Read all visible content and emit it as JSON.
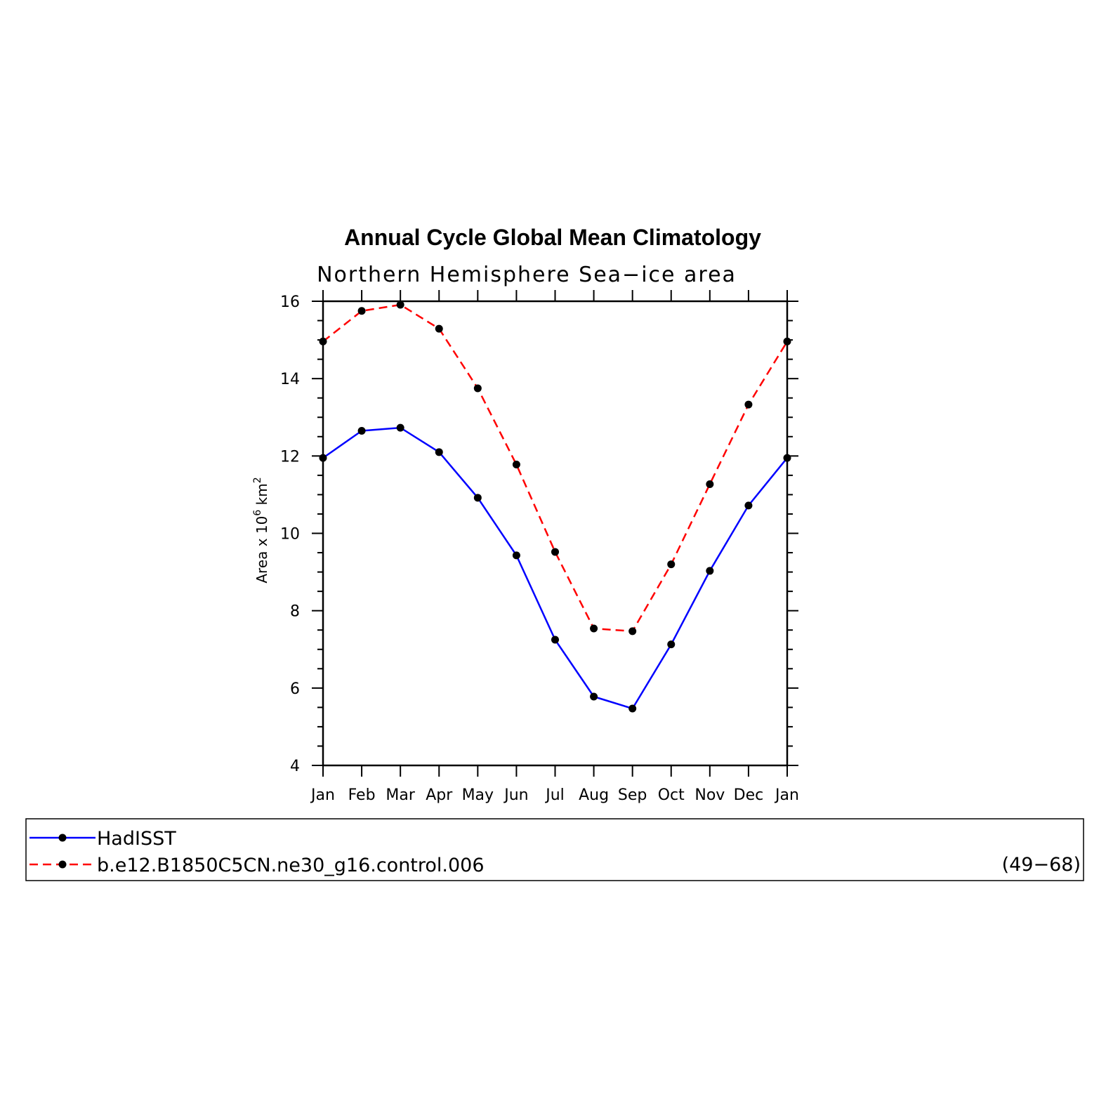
{
  "chart_data": {
    "type": "line",
    "title": "Annual Cycle Global Mean Climatology",
    "subtitle": "Northern Hemisphere Sea−ice area",
    "ylabel": {
      "text": "Area x 10",
      "sup1": "6",
      "unit": " km",
      "sup2": "2"
    },
    "xlabel": "",
    "categories": [
      "Jan",
      "Feb",
      "Mar",
      "Apr",
      "May",
      "Jun",
      "Jul",
      "Aug",
      "Sep",
      "Oct",
      "Nov",
      "Dec",
      "Jan"
    ],
    "ylim": [
      4,
      16
    ],
    "yticks": [
      4,
      6,
      8,
      10,
      12,
      14,
      16
    ],
    "series": [
      {
        "name": "HadISST",
        "color": "#0000ff",
        "dash": "solid",
        "values": [
          11.95,
          12.65,
          12.73,
          12.1,
          10.92,
          9.43,
          7.25,
          5.78,
          5.47,
          7.13,
          9.03,
          10.72,
          11.95
        ]
      },
      {
        "name": "b.e12.B1850C5CN.ne30_g16.control.006",
        "color": "#ff0000",
        "dash": "dashed",
        "values": [
          14.96,
          15.75,
          15.91,
          15.29,
          13.75,
          11.78,
          9.52,
          7.54,
          7.47,
          9.2,
          11.27,
          13.33,
          14.96
        ]
      }
    ],
    "legend": {
      "placement": "bottom",
      "extra_text": "(49−68)"
    },
    "grid": false
  }
}
